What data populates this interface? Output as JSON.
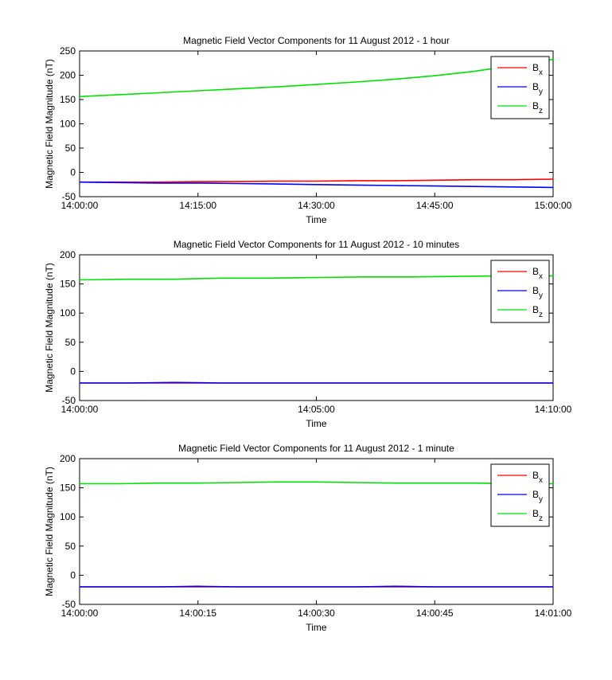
{
  "chart_data": [
    {
      "type": "line",
      "title": "Magnetic Field Vector Components for 11 August 2012 - 1 hour",
      "xlabel": "Time",
      "ylabel": "Magnetic Field Magnitude (nT)",
      "xlim": [
        "14:00:00",
        "15:00:00"
      ],
      "ylim": [
        -50,
        250
      ],
      "x_ticks": [
        "14:00:00",
        "14:15:00",
        "14:30:00",
        "14:45:00",
        "15:00:00"
      ],
      "y_ticks": [
        250,
        200,
        150,
        100,
        50,
        0,
        -50
      ],
      "legend_position": "top-right",
      "grid": false,
      "x": [
        "14:00:00",
        "14:05:00",
        "14:10:00",
        "14:15:00",
        "14:20:00",
        "14:25:00",
        "14:30:00",
        "14:35:00",
        "14:40:00",
        "14:45:00",
        "14:50:00",
        "14:55:00",
        "15:00:00"
      ],
      "series": [
        {
          "name": "x",
          "color": "#ff0000",
          "values": [
            -20,
            -20,
            -20,
            -19,
            -19,
            -18,
            -18,
            -17,
            -17,
            -16,
            -15,
            -15,
            -14
          ]
        },
        {
          "name": "y",
          "color": "#0000ff",
          "values": [
            -20,
            -21,
            -22,
            -22,
            -23,
            -24,
            -25,
            -26,
            -27,
            -28,
            -29,
            -30,
            -31
          ]
        },
        {
          "name": "z",
          "color": "#00e000",
          "values": [
            156,
            160,
            164,
            168,
            172,
            176,
            181,
            186,
            192,
            199,
            208,
            220,
            233
          ]
        }
      ]
    },
    {
      "type": "line",
      "title": "Magnetic Field Vector Components for 11 August 2012 - 10 minutes",
      "xlabel": "Time",
      "ylabel": "Magnetic Field Magnitude (nT)",
      "xlim": [
        "14:00:00",
        "14:10:00"
      ],
      "ylim": [
        -50,
        200
      ],
      "x_ticks": [
        "14:00:00",
        "14:05:00",
        "14:10:00"
      ],
      "y_ticks": [
        200,
        150,
        100,
        50,
        0,
        -50
      ],
      "legend_position": "top-right",
      "grid": false,
      "x": [
        "14:00:00",
        "14:01:00",
        "14:02:00",
        "14:03:00",
        "14:04:00",
        "14:05:00",
        "14:06:00",
        "14:07:00",
        "14:08:00",
        "14:09:00",
        "14:10:00"
      ],
      "series": [
        {
          "name": "x",
          "color": "#ff0000",
          "values": [
            -20,
            -20,
            -20,
            -20,
            -20,
            -20,
            -20,
            -20,
            -20,
            -20,
            -20
          ]
        },
        {
          "name": "y",
          "color": "#0000ff",
          "values": [
            -20,
            -20,
            -19,
            -20,
            -20,
            -20,
            -20,
            -20,
            -20,
            -20,
            -20
          ]
        },
        {
          "name": "z",
          "color": "#00e000",
          "values": [
            157,
            158,
            158,
            160,
            160,
            161,
            162,
            162,
            163,
            164,
            164
          ]
        }
      ]
    },
    {
      "type": "line",
      "title": "Magnetic Field Vector Components for 11 August 2012 - 1 minute",
      "xlabel": "Time",
      "ylabel": "Magnetic Field Magnitude (nT)",
      "xlim": [
        "14:00:00",
        "14:01:00"
      ],
      "ylim": [
        -50,
        200
      ],
      "x_ticks": [
        "14:00:00",
        "14:00:15",
        "14:00:30",
        "14:00:45",
        "14:01:00"
      ],
      "y_ticks": [
        200,
        150,
        100,
        50,
        0,
        -50
      ],
      "legend_position": "top-right",
      "grid": false,
      "x": [
        "14:00:00",
        "14:00:05",
        "14:00:10",
        "14:00:15",
        "14:00:20",
        "14:00:25",
        "14:00:30",
        "14:00:35",
        "14:00:40",
        "14:00:45",
        "14:00:50",
        "14:00:55",
        "14:01:00"
      ],
      "series": [
        {
          "name": "x",
          "color": "#ff0000",
          "values": [
            -20,
            -20,
            -20,
            -20,
            -20,
            -20,
            -20,
            -20,
            -20,
            -20,
            -20,
            -20,
            -20
          ]
        },
        {
          "name": "y",
          "color": "#0000ff",
          "values": [
            -20,
            -20,
            -20,
            -19,
            -20,
            -20,
            -20,
            -20,
            -19,
            -20,
            -20,
            -20,
            -20
          ]
        },
        {
          "name": "z",
          "color": "#00e000",
          "values": [
            157,
            157,
            158,
            158,
            159,
            160,
            160,
            159,
            158,
            158,
            158,
            157,
            157
          ]
        }
      ]
    }
  ],
  "legend_label_letter": "B"
}
